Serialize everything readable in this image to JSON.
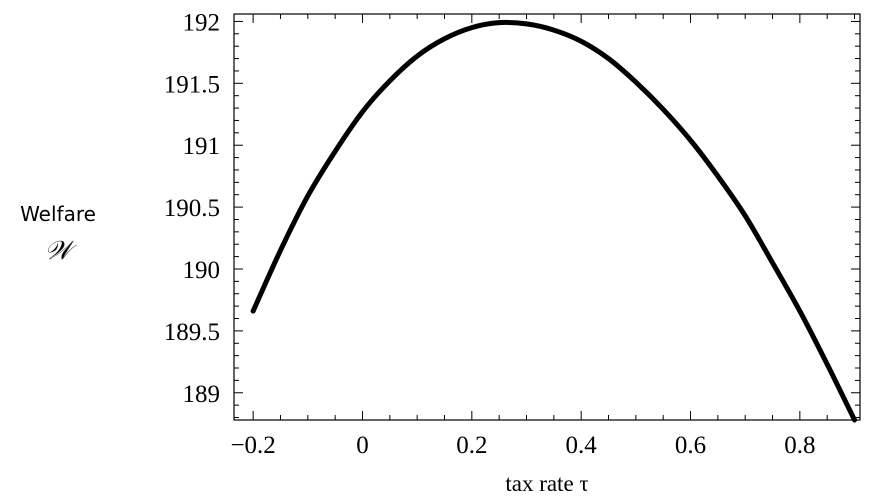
{
  "chart_data": {
    "type": "line",
    "title": "",
    "xlabel": "tax rate τ",
    "ylabel": "Welfare",
    "ylabel_symbol": "𝒲",
    "xlim": [
      -0.235,
      0.91
    ],
    "ylim": [
      188.78,
      192.06
    ],
    "xticks": [
      -0.2,
      0,
      0.2,
      0.4,
      0.6,
      0.8
    ],
    "xtick_labels": [
      "−0.2",
      "0",
      "0.2",
      "0.4",
      "0.6",
      "0.8"
    ],
    "yticks": [
      189,
      189.5,
      190,
      190.5,
      191,
      191.5,
      192
    ],
    "ytick_labels": [
      "189",
      "189.5",
      "190",
      "190.5",
      "191",
      "191.5",
      "192"
    ],
    "grid": false,
    "series": [
      {
        "name": "",
        "x": [
          -0.2,
          -0.15,
          -0.1,
          -0.05,
          0.0,
          0.05,
          0.1,
          0.15,
          0.2,
          0.25,
          0.3,
          0.35,
          0.4,
          0.45,
          0.5,
          0.55,
          0.6,
          0.65,
          0.7,
          0.75,
          0.8,
          0.85,
          0.9
        ],
        "y": [
          189.66,
          190.15,
          190.59,
          190.95,
          191.27,
          191.52,
          191.72,
          191.86,
          191.95,
          191.99,
          191.98,
          191.93,
          191.84,
          191.7,
          191.51,
          191.29,
          191.04,
          190.75,
          190.43,
          190.05,
          189.66,
          189.23,
          188.78
        ]
      }
    ]
  }
}
